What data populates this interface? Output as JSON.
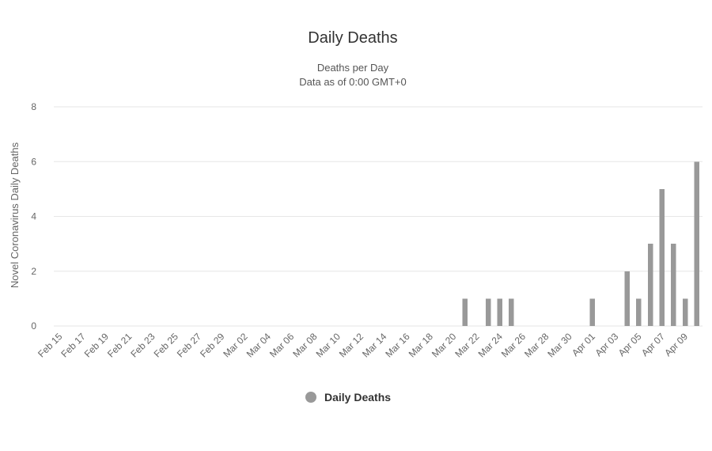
{
  "chart_data": {
    "type": "bar",
    "title": "Daily Deaths",
    "subtitle_line1": "Deaths per Day",
    "subtitle_line2": "Data as of 0:00 GMT+0",
    "ylabel": "Novel Coronavirus Daily Deaths",
    "xlabel": "",
    "ylim": [
      0,
      8
    ],
    "yticks": [
      0,
      2,
      4,
      6,
      8
    ],
    "grid": true,
    "legend_position": "bottom",
    "bar_color": "#999999",
    "categories": [
      "Feb 15",
      "Feb 16",
      "Feb 17",
      "Feb 18",
      "Feb 19",
      "Feb 20",
      "Feb 21",
      "Feb 22",
      "Feb 23",
      "Feb 24",
      "Feb 25",
      "Feb 26",
      "Feb 27",
      "Feb 28",
      "Feb 29",
      "Mar 01",
      "Mar 02",
      "Mar 03",
      "Mar 04",
      "Mar 05",
      "Mar 06",
      "Mar 07",
      "Mar 08",
      "Mar 09",
      "Mar 10",
      "Mar 11",
      "Mar 12",
      "Mar 13",
      "Mar 14",
      "Mar 15",
      "Mar 16",
      "Mar 17",
      "Mar 18",
      "Mar 19",
      "Mar 20",
      "Mar 21",
      "Mar 22",
      "Mar 23",
      "Mar 24",
      "Mar 25",
      "Mar 26",
      "Mar 27",
      "Mar 28",
      "Mar 29",
      "Mar 30",
      "Mar 31",
      "Apr 01",
      "Apr 02",
      "Apr 03",
      "Apr 04",
      "Apr 05",
      "Apr 06",
      "Apr 07",
      "Apr 08",
      "Apr 09",
      "Apr 10"
    ],
    "tick_labels": [
      "Feb 15",
      "Feb 17",
      "Feb 19",
      "Feb 21",
      "Feb 23",
      "Feb 25",
      "Feb 27",
      "Feb 29",
      "Mar 02",
      "Mar 04",
      "Mar 06",
      "Mar 08",
      "Mar 10",
      "Mar 12",
      "Mar 14",
      "Mar 16",
      "Mar 18",
      "Mar 20",
      "Mar 22",
      "Mar 24",
      "Mar 26",
      "Mar 28",
      "Mar 30",
      "Apr 01",
      "Apr 03",
      "Apr 05",
      "Apr 07",
      "Apr 09"
    ],
    "series": [
      {
        "name": "Daily Deaths",
        "values": [
          0,
          0,
          0,
          0,
          0,
          0,
          0,
          0,
          0,
          0,
          0,
          0,
          0,
          0,
          0,
          0,
          0,
          0,
          0,
          0,
          0,
          0,
          0,
          0,
          0,
          0,
          0,
          0,
          0,
          0,
          0,
          0,
          0,
          0,
          0,
          1,
          0,
          1,
          1,
          1,
          0,
          0,
          0,
          0,
          0,
          0,
          1,
          0,
          0,
          2,
          1,
          3,
          5,
          3,
          1,
          6
        ]
      }
    ]
  }
}
